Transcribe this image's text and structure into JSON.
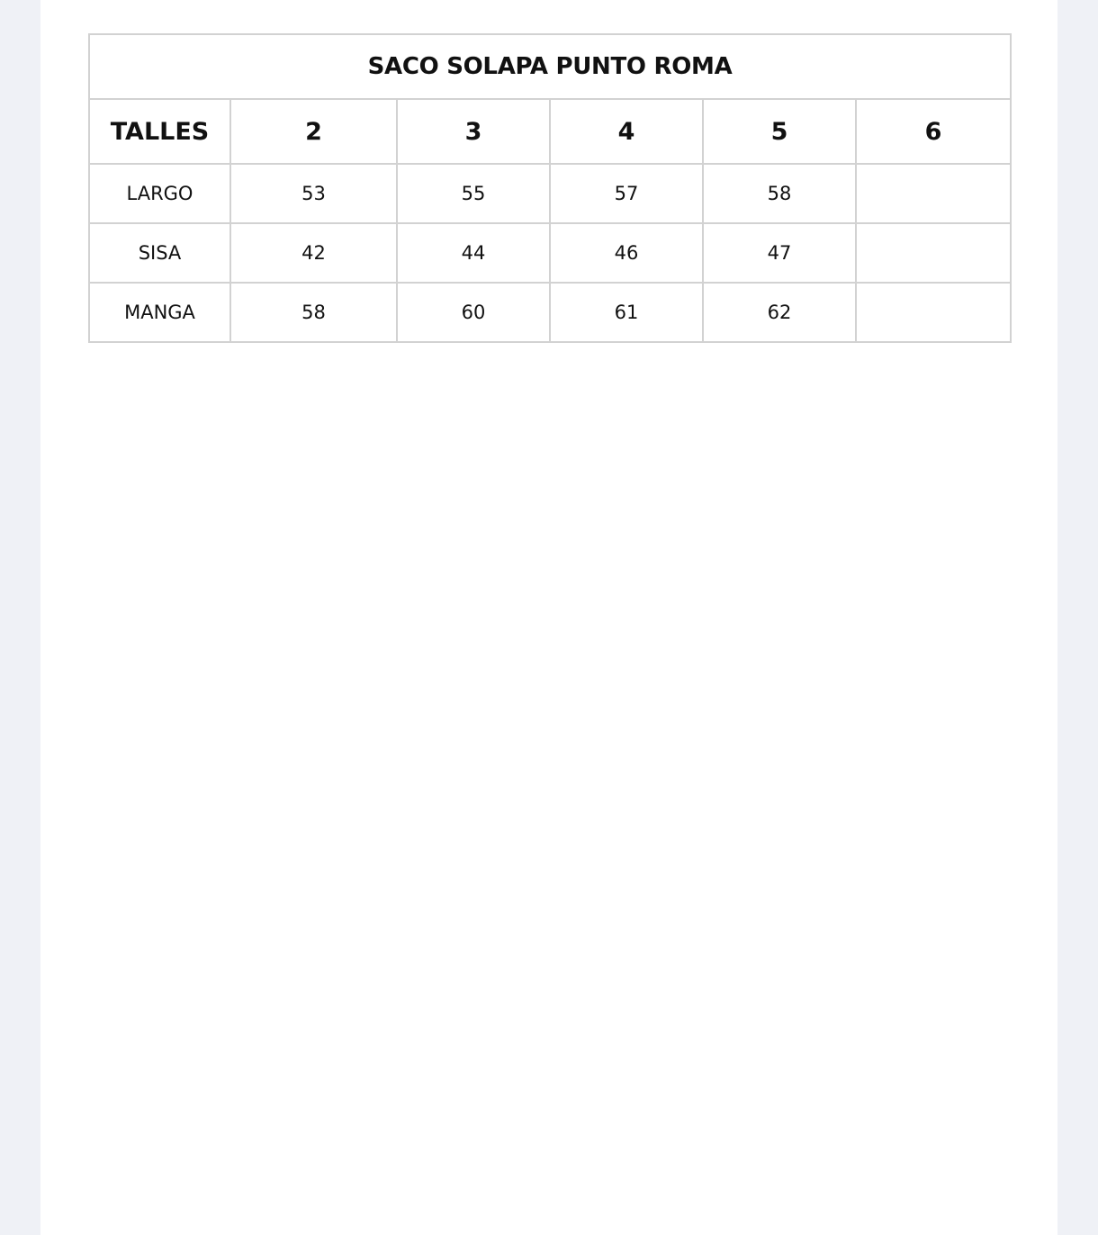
{
  "table": {
    "title": "SACO SOLAPA PUNTO ROMA",
    "headers": [
      "TALLES",
      "2",
      "3",
      "4",
      "5",
      "6"
    ],
    "rows": [
      {
        "label": "LARGO",
        "values": [
          "53",
          "55",
          "57",
          "58",
          ""
        ]
      },
      {
        "label": "SISA",
        "values": [
          "42",
          "44",
          "46",
          "47",
          ""
        ]
      },
      {
        "label": "MANGA",
        "values": [
          "58",
          "60",
          "61",
          "62",
          ""
        ]
      }
    ]
  }
}
